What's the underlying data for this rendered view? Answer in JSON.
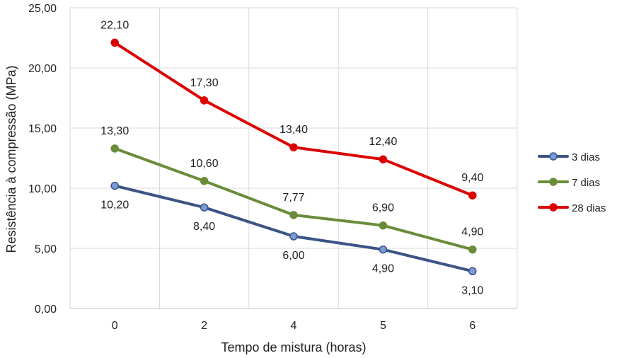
{
  "chart_data": {
    "type": "line",
    "categories": [
      "0",
      "2",
      "4",
      "5",
      "6"
    ],
    "series": [
      {
        "name": "3 dias",
        "color": "#3B5485",
        "marker_fill": "#7C9BD6",
        "values": [
          10.2,
          8.4,
          6.0,
          4.9,
          3.1
        ],
        "labels": [
          "10,20",
          "8,40",
          "6,00",
          "4,90",
          "3,10"
        ],
        "label_position": "below"
      },
      {
        "name": "7 dias",
        "color": "#6A8C3A",
        "marker_fill": "#6A8C3A",
        "values": [
          13.3,
          10.6,
          7.77,
          6.9,
          4.9
        ],
        "labels": [
          "13,30",
          "10,60",
          "7,77",
          "6,90",
          "4,90"
        ],
        "label_position": "above"
      },
      {
        "name": "28 dias",
        "color": "#DD0000",
        "marker_fill": "#DD0000",
        "values": [
          22.1,
          17.3,
          13.4,
          12.4,
          9.4
        ],
        "labels": [
          "22,10",
          "17,30",
          "13,40",
          "12,40",
          "9,40"
        ],
        "label_position": "above"
      }
    ],
    "title": "",
    "xlabel": "Tempo de mistura (horas)",
    "ylabel": "Resistência à compressão (MPa)",
    "ylim": [
      0,
      25
    ],
    "yticks": [
      0,
      5,
      10,
      15,
      20,
      25
    ],
    "ytick_labels": [
      "0,00",
      "5,00",
      "10,00",
      "15,00",
      "20,00",
      "25,00"
    ],
    "grid": true,
    "legend": "right"
  }
}
